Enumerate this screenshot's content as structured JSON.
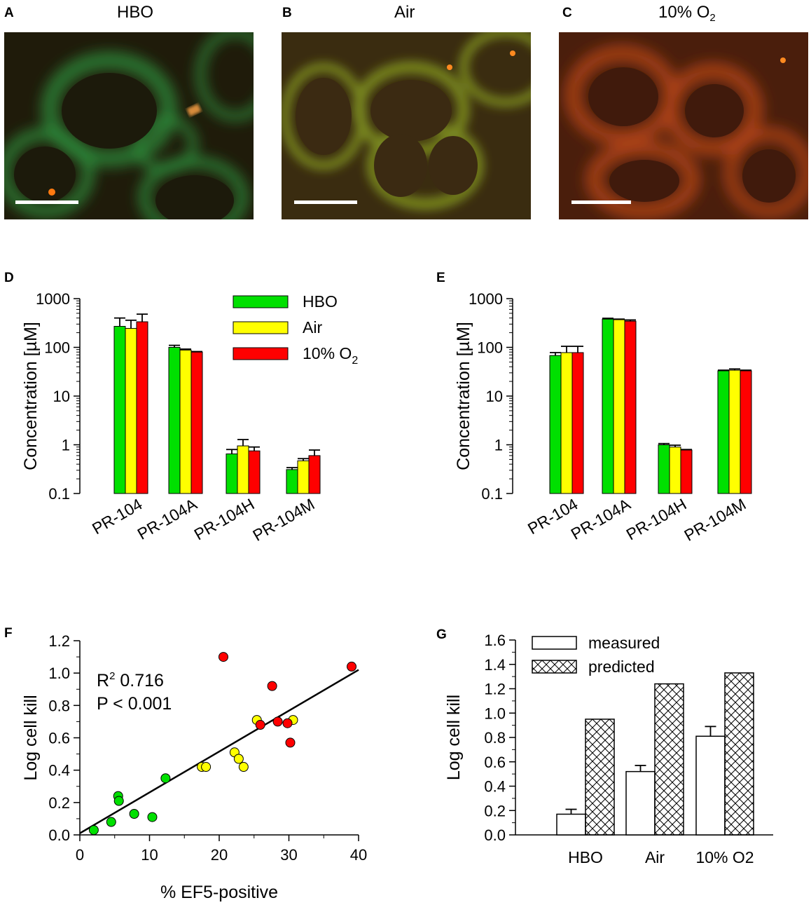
{
  "panels": {
    "A": {
      "letter": "A",
      "title": "HBO"
    },
    "B": {
      "letter": "B",
      "title": "Air"
    },
    "C": {
      "letter": "C",
      "title_main": "10% O",
      "title_sub": "2"
    },
    "D": {
      "letter": "D"
    },
    "E": {
      "letter": "E"
    },
    "F": {
      "letter": "F"
    },
    "G": {
      "letter": "G"
    }
  },
  "colors": {
    "hbo": "#00e000",
    "air": "#ffff00",
    "o2": "#ff0000"
  },
  "chart_data": [
    {
      "id": "D",
      "type": "bar",
      "yscale": "log",
      "ylim": [
        0.1,
        1000
      ],
      "ylabel": "Concentration [µM]",
      "yticks": [
        "0.1",
        "1",
        "10",
        "100",
        "1000"
      ],
      "categories": [
        "PR-104",
        "PR-104A",
        "PR-104H",
        "PR-104M"
      ],
      "legend": {
        "placement": "top-right",
        "entries": [
          "HBO",
          "Air",
          "10% O",
          "2"
        ]
      },
      "series": [
        {
          "name": "HBO",
          "values": [
            270,
            100,
            0.65,
            0.31
          ],
          "errors": [
            400,
            110,
            0.8,
            0.34
          ]
        },
        {
          "name": "Air",
          "values": [
            245,
            88,
            0.95,
            0.47
          ],
          "errors": [
            360,
            92,
            1.28,
            0.52
          ]
        },
        {
          "name": "10% O2",
          "values": [
            335,
            80,
            0.75,
            0.6
          ],
          "errors": [
            480,
            82,
            0.9,
            0.78
          ]
        }
      ]
    },
    {
      "id": "E",
      "type": "bar",
      "yscale": "log",
      "ylim": [
        0.1,
        1000
      ],
      "ylabel": "Concentration [µM]",
      "yticks": [
        "0.1",
        "1",
        "10",
        "100",
        "1000"
      ],
      "categories": [
        "PR-104",
        "PR-104A",
        "PR-104H",
        "PR-104M"
      ],
      "series": [
        {
          "name": "HBO",
          "values": [
            68,
            380,
            1.0,
            33
          ],
          "errors": [
            78,
            395,
            1.06,
            34
          ]
        },
        {
          "name": "Air",
          "values": [
            78,
            370,
            0.9,
            34
          ],
          "errors": [
            105,
            380,
            0.98,
            36
          ]
        },
        {
          "name": "10% O2",
          "values": [
            78,
            345,
            0.78,
            33
          ],
          "errors": [
            105,
            365,
            0.8,
            34
          ]
        }
      ]
    },
    {
      "id": "F",
      "type": "scatter",
      "xlabel": "% EF5-positive",
      "ylabel": "Log cell kill",
      "xlim": [
        0,
        40
      ],
      "ylim": [
        0,
        1.2
      ],
      "xticks": [
        "0",
        "10",
        "20",
        "30",
        "40"
      ],
      "yticks": [
        "0.0",
        "0.2",
        "0.4",
        "0.6",
        "0.8",
        "1.0",
        "1.2"
      ],
      "annotation": {
        "r2_main": "R",
        "r2_sup": "2",
        "r2_value": " 0.716",
        "p": "P < 0.001"
      },
      "fit_line": {
        "x": [
          0,
          40
        ],
        "y": [
          0.01,
          1.02
        ]
      },
      "series": [
        {
          "name": "HBO",
          "points": [
            [
              2.0,
              0.03
            ],
            [
              4.5,
              0.08
            ],
            [
              5.5,
              0.24
            ],
            [
              5.6,
              0.21
            ],
            [
              7.8,
              0.13
            ],
            [
              10.4,
              0.11
            ],
            [
              12.3,
              0.35
            ]
          ]
        },
        {
          "name": "Air",
          "points": [
            [
              17.5,
              0.42
            ],
            [
              18.1,
              0.42
            ],
            [
              22.2,
              0.51
            ],
            [
              22.8,
              0.47
            ],
            [
              23.5,
              0.42
            ],
            [
              25.4,
              0.71
            ],
            [
              30.6,
              0.71
            ]
          ]
        },
        {
          "name": "10% O2",
          "points": [
            [
              20.6,
              1.1
            ],
            [
              25.9,
              0.68
            ],
            [
              27.6,
              0.92
            ],
            [
              28.4,
              0.7
            ],
            [
              29.8,
              0.69
            ],
            [
              30.2,
              0.57
            ],
            [
              39.0,
              1.04
            ]
          ]
        }
      ]
    },
    {
      "id": "G",
      "type": "bar",
      "ylabel": "Log cell kill",
      "ylim": [
        0,
        1.6
      ],
      "yticks": [
        "0.0",
        "0.2",
        "0.4",
        "0.6",
        "0.8",
        "1.0",
        "1.2",
        "1.4",
        "1.6"
      ],
      "categories": [
        "HBO",
        "Air",
        "10% O2"
      ],
      "legend": {
        "placement": "top-left",
        "entries": [
          "measured",
          "predicted"
        ]
      },
      "series": [
        {
          "name": "measured",
          "values": [
            0.17,
            0.52,
            0.81
          ],
          "errors": [
            0.21,
            0.57,
            0.89
          ]
        },
        {
          "name": "predicted",
          "values": [
            0.95,
            1.24,
            1.33
          ]
        }
      ]
    }
  ]
}
